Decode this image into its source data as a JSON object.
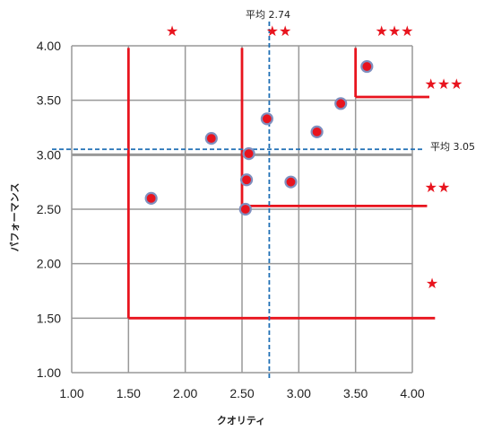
{
  "chart_data": {
    "type": "scatter",
    "xlabel": "クオリティ",
    "ylabel": "パフォーマンス",
    "xlim": [
      1.0,
      4.0
    ],
    "ylim": [
      1.0,
      4.0
    ],
    "x_ticks": [
      "1.00",
      "1.50",
      "2.00",
      "2.50",
      "3.00",
      "3.50",
      "4.00"
    ],
    "y_ticks": [
      "1.00",
      "1.50",
      "2.00",
      "2.50",
      "3.00",
      "3.50",
      "4.00"
    ],
    "grid": true,
    "points": [
      {
        "x": 1.7,
        "y": 2.6
      },
      {
        "x": 2.23,
        "y": 3.15
      },
      {
        "x": 2.53,
        "y": 2.5
      },
      {
        "x": 2.54,
        "y": 2.77
      },
      {
        "x": 2.56,
        "y": 3.01
      },
      {
        "x": 2.72,
        "y": 3.33
      },
      {
        "x": 2.93,
        "y": 2.75
      },
      {
        "x": 3.16,
        "y": 3.21
      },
      {
        "x": 3.37,
        "y": 3.47
      },
      {
        "x": 3.6,
        "y": 3.81
      }
    ],
    "mean_x": {
      "value": 2.74,
      "label": "平均 2.74"
    },
    "mean_y": {
      "value": 3.05,
      "label": "平均 3.05"
    },
    "colors": {
      "point_fill": "#e8141e",
      "point_edge": "#7f8fbf",
      "zone_lines": "#e8141e",
      "mean_lines": "#1f6fb5",
      "grid": "#999999",
      "star": "#e8141e"
    },
    "star_labels": [
      "★",
      "★★",
      "★★★",
      "★★★",
      "★★",
      "★"
    ]
  }
}
